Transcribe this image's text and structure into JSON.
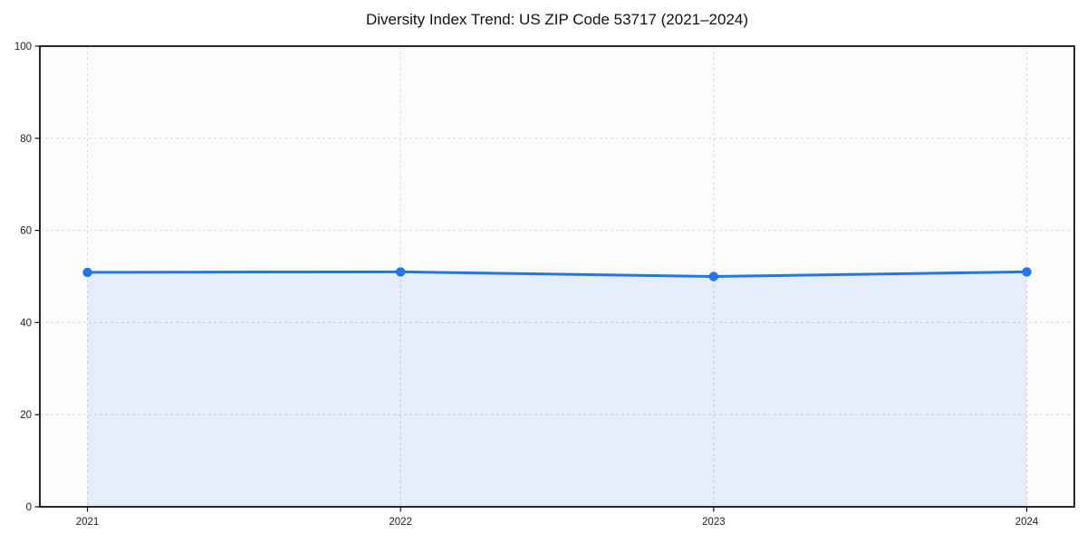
{
  "chart_data": {
    "type": "area",
    "title": "Diversity Index Trend: US ZIP Code 53717 (2021–2024)",
    "categories": [
      "2021",
      "2022",
      "2023",
      "2024"
    ],
    "values": [
      50.9,
      51.0,
      50.0,
      51.0
    ],
    "xlabel": "",
    "ylabel": "",
    "ylim": [
      0,
      100
    ],
    "yticks": [
      0,
      20,
      40,
      60,
      80,
      100
    ],
    "grid": {
      "on": true,
      "style": "dashed"
    },
    "legend": "none",
    "marker": "circle",
    "colors": {
      "line": "#2575e8",
      "marker": "#2575e8",
      "fill": "#2575e8",
      "fill_opacity": 0.1,
      "grid": "#dcdcdc",
      "frame": "#111111",
      "tick_label": "#222222",
      "title": "#111111",
      "plot_background": "#fbfbfb",
      "figure_background": "#ffffff"
    }
  }
}
